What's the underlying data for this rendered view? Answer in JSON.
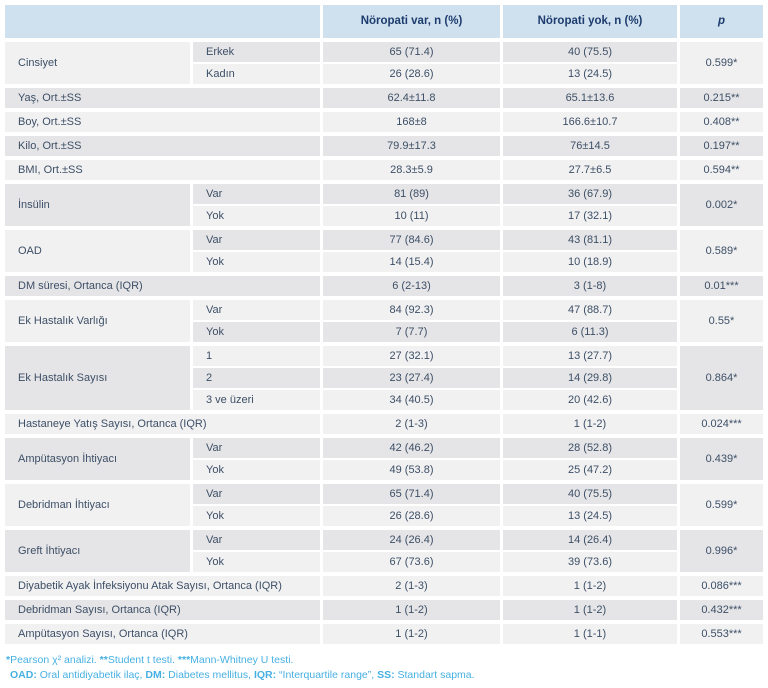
{
  "palette": {
    "header_bg": "#cfe1ef",
    "header_text": "#1d3c6d",
    "row_dark": "#e5e5e7",
    "row_light": "#f1f1f2",
    "body_text": "#3d4f66",
    "footer_text": "#47b0e2",
    "page_bg": "#ffffff"
  },
  "header": {
    "col_empty": "",
    "col_var": "Nöropati var, n (%)",
    "col_yok": "Nöropati yok, n (%)",
    "col_p": "p"
  },
  "groups": [
    {
      "label": "Cinsiyet",
      "shade": "light",
      "p": "0.599*",
      "rows": [
        {
          "sub": "Erkek",
          "var": "65 (71.4)",
          "yok": "40 (75.5)",
          "shade": "dark"
        },
        {
          "sub": "Kadın",
          "var": "26 (28.6)",
          "yok": "13 (24.5)",
          "shade": "light"
        }
      ]
    },
    {
      "label": "Yaş, Ort.±SS",
      "shade": "dark",
      "p": "0.215**",
      "rows": [
        {
          "sub": null,
          "var": "62.4±11.8",
          "yok": "65.1±13.6",
          "shade": "dark"
        }
      ]
    },
    {
      "label": "Boy, Ort.±SS",
      "shade": "light",
      "p": "0.408**",
      "rows": [
        {
          "sub": null,
          "var": "168±8",
          "yok": "166.6±10.7",
          "shade": "light"
        }
      ]
    },
    {
      "label": "Kilo, Ort.±SS",
      "shade": "dark",
      "p": "0.197**",
      "rows": [
        {
          "sub": null,
          "var": "79.9±17.3",
          "yok": "76±14.5",
          "shade": "dark"
        }
      ]
    },
    {
      "label": "BMI, Ort.±SS",
      "shade": "light",
      "p": "0.594**",
      "rows": [
        {
          "sub": null,
          "var": "28.3±5.9",
          "yok": "27.7±6.5",
          "shade": "light"
        }
      ]
    },
    {
      "label": "İnsülin",
      "shade": "dark",
      "p": "0.002*",
      "rows": [
        {
          "sub": "Var",
          "var": "81 (89)",
          "yok": "36 (67.9)",
          "shade": "dark"
        },
        {
          "sub": "Yok",
          "var": "10 (11)",
          "yok": "17 (32.1)",
          "shade": "light"
        }
      ]
    },
    {
      "label": "OAD",
      "shade": "light",
      "p": "0.589*",
      "rows": [
        {
          "sub": "Var",
          "var": "77 (84.6)",
          "yok": "43 (81.1)",
          "shade": "dark"
        },
        {
          "sub": "Yok",
          "var": "14 (15.4)",
          "yok": "10 (18.9)",
          "shade": "light"
        }
      ]
    },
    {
      "label": "DM süresi, Ortanca (IQR)",
      "shade": "dark",
      "p": "0.01***",
      "rows": [
        {
          "sub": null,
          "var": "6 (2-13)",
          "yok": "3 (1-8)",
          "shade": "dark"
        }
      ]
    },
    {
      "label": "Ek Hastalık Varlığı",
      "shade": "light",
      "p": "0.55*",
      "rows": [
        {
          "sub": "Var",
          "var": "84 (92.3)",
          "yok": "47 (88.7)",
          "shade": "light"
        },
        {
          "sub": "Yok",
          "var": "7 (7.7)",
          "yok": "6 (11.3)",
          "shade": "dark"
        }
      ]
    },
    {
      "label": "Ek Hastalık Sayısı",
      "shade": "dark",
      "p": "0.864*",
      "rows": [
        {
          "sub": "1",
          "var": "27 (32.1)",
          "yok": "13 (27.7)",
          "shade": "light"
        },
        {
          "sub": "2",
          "var": "23 (27.4)",
          "yok": "14 (29.8)",
          "shade": "dark"
        },
        {
          "sub": "3 ve üzeri",
          "var": "34 (40.5)",
          "yok": "20 (42.6)",
          "shade": "light"
        }
      ]
    },
    {
      "label": "Hastaneye Yatış Sayısı, Ortanca (IQR)",
      "shade": "light",
      "p": "0.024***",
      "rows": [
        {
          "sub": null,
          "var": "2 (1-3)",
          "yok": "1 (1-2)",
          "shade": "light"
        }
      ]
    },
    {
      "label": "Ampütasyon İhtiyacı",
      "shade": "dark",
      "p": "0.439*",
      "rows": [
        {
          "sub": "Var",
          "var": "42 (46.2)",
          "yok": "28 (52.8)",
          "shade": "dark"
        },
        {
          "sub": "Yok",
          "var": "49 (53.8)",
          "yok": "25 (47.2)",
          "shade": "light"
        }
      ]
    },
    {
      "label": "Debridman İhtiyacı",
      "shade": "light",
      "p": "0.599*",
      "rows": [
        {
          "sub": "Var",
          "var": "65 (71.4)",
          "yok": "40 (75.5)",
          "shade": "dark"
        },
        {
          "sub": "Yok",
          "var": "26 (28.6)",
          "yok": "13 (24.5)",
          "shade": "light"
        }
      ]
    },
    {
      "label": "Greft İhtiyacı",
      "shade": "dark",
      "p": "0.996*",
      "rows": [
        {
          "sub": "Var",
          "var": "24 (26.4)",
          "yok": "14 (26.4)",
          "shade": "dark"
        },
        {
          "sub": "Yok",
          "var": "67 (73.6)",
          "yok": "39 (73.6)",
          "shade": "light"
        }
      ]
    },
    {
      "label": "Diyabetik Ayak İnfeksiyonu Atak Sayısı, Ortanca (IQR)",
      "shade": "light",
      "p": "0.086***",
      "rows": [
        {
          "sub": null,
          "var": "2 (1-3)",
          "yok": "1 (1-2)",
          "shade": "light"
        }
      ]
    },
    {
      "label": "Debridman Sayısı, Ortanca (IQR)",
      "shade": "dark",
      "p": "0.432***",
      "rows": [
        {
          "sub": null,
          "var": "1 (1-2)",
          "yok": "1 (1-2)",
          "shade": "dark"
        }
      ]
    },
    {
      "label": "Ampütasyon Sayısı, Ortanca (IQR)",
      "shade": "light",
      "p": "0.553***",
      "rows": [
        {
          "sub": null,
          "var": "1 (1-2)",
          "yok": "1 (1-1)",
          "shade": "light"
        }
      ]
    }
  ],
  "footnotes": {
    "line1": [
      {
        "text": "*",
        "bold": true
      },
      {
        "text": "Pearson χ² analizi. ",
        "bold": false
      },
      {
        "text": "**",
        "bold": true
      },
      {
        "text": "Student t testi. ",
        "bold": false
      },
      {
        "text": "***",
        "bold": true
      },
      {
        "text": "Mann-Whitney U testi.",
        "bold": false
      }
    ],
    "line2": [
      {
        "text": "OAD:",
        "bold": true
      },
      {
        "text": " Oral antidiyabetik ilaç, ",
        "bold": false
      },
      {
        "text": "DM:",
        "bold": true
      },
      {
        "text": " Diabetes mellitus, ",
        "bold": false
      },
      {
        "text": "IQR:",
        "bold": true
      },
      {
        "text": " “Interquartile range”, ",
        "bold": false
      },
      {
        "text": "SS:",
        "bold": true
      },
      {
        "text": " Standart sapma.",
        "bold": false
      }
    ]
  }
}
